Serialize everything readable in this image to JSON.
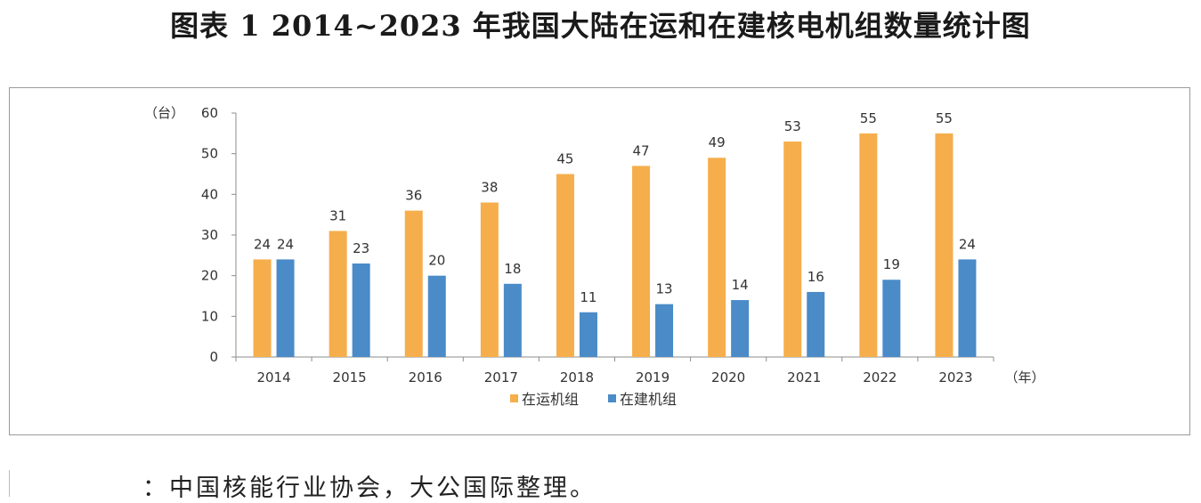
{
  "page": {
    "title": "图表 1  2014~2023 年我国大陆在运和在建核电机组数量统计图"
  },
  "source": {
    "text": "：中国核能行业协会，大公国际整理。"
  },
  "colors": {
    "operating": "#F5AE4B",
    "construction": "#4A8BC8",
    "axis": "#8c8c8c",
    "text": "#333333"
  },
  "chart_data": {
    "type": "bar",
    "title": "",
    "xlabel": "（年）",
    "ylabel": "（台）",
    "categories": [
      "2014",
      "2015",
      "2016",
      "2017",
      "2018",
      "2019",
      "2020",
      "2021",
      "2022",
      "2023"
    ],
    "series": [
      {
        "name": "在运机组",
        "color": "#F5AE4B",
        "values": [
          24,
          31,
          36,
          38,
          45,
          47,
          49,
          53,
          55,
          55
        ]
      },
      {
        "name": "在建机组",
        "color": "#4A8BC8",
        "values": [
          24,
          23,
          20,
          18,
          11,
          13,
          14,
          16,
          19,
          24
        ]
      }
    ],
    "ylim": [
      0,
      60
    ],
    "yticks": [
      0,
      10,
      20,
      30,
      40,
      50,
      60
    ],
    "grid": false,
    "legend": "bottom-center",
    "data_labels": true
  }
}
